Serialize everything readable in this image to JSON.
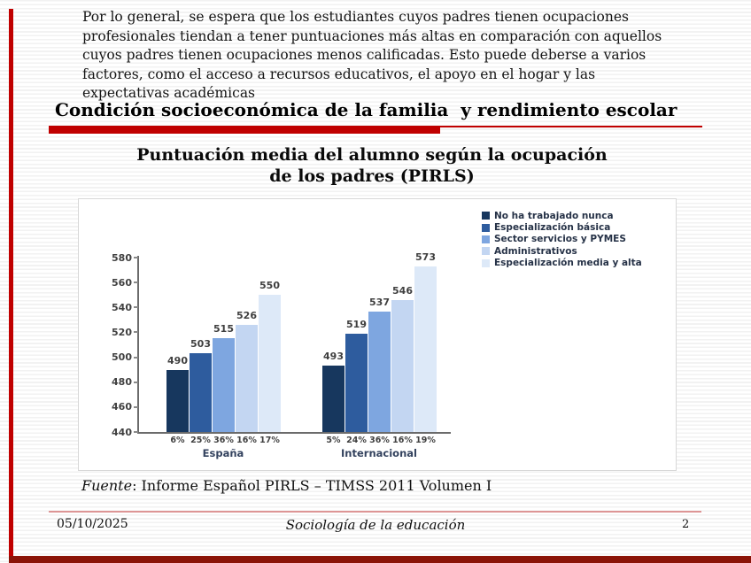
{
  "slide": {
    "intro_paragraph": "Por lo general, se espera que los estudiantes cuyos padres tienen ocupaciones profesionales tiendan a tener puntuaciones más altas en comparación con aquellos cuyos padres tienen ocupaciones menos calificadas. Esto puede deberse a varios factores, como el acceso a recursos educativos, el apoyo en el hogar y las expectativas académicas",
    "title": "Condición socioeconómica de la familia  y rendimiento escolar",
    "accent_color": "#c00000",
    "edge_bar_color": "#8b1408"
  },
  "chart_data": {
    "type": "bar",
    "title_line1": "Puntuación media del alumno según la ocupación",
    "title_line2": "de los padres (PIRLS)",
    "categories": [
      "España",
      "Internacional"
    ],
    "series": [
      {
        "name": "No ha trabajado nunca",
        "color": "#17375e",
        "values": [
          490,
          493
        ],
        "pcts": [
          "6%",
          "5%"
        ]
      },
      {
        "name": "Especialización básica",
        "color": "#2e5c9e",
        "values": [
          503,
          519
        ],
        "pcts": [
          "25%",
          "24%"
        ]
      },
      {
        "name": "Sector servicios y PYMES",
        "color": "#7ea6e0",
        "values": [
          515,
          537
        ],
        "pcts": [
          "36%",
          "36%"
        ]
      },
      {
        "name": "Administrativos",
        "color": "#c3d6f2",
        "values": [
          526,
          546
        ],
        "pcts": [
          "16%",
          "16%"
        ]
      },
      {
        "name": "Especialización media y alta",
        "color": "#dde9f8",
        "values": [
          550,
          573
        ],
        "pcts": [
          "17%",
          "19%"
        ]
      }
    ],
    "ylim": [
      440,
      580
    ],
    "ytick_step": 20,
    "legend_position": "top-right",
    "grid": false
  },
  "source": {
    "label_italic": "Fuente",
    "text": ": Informe Español PIRLS – TIMSS 2011 Volumen I"
  },
  "footer": {
    "date": "05/10/2025",
    "center": "Sociología de la educación",
    "page": "2"
  }
}
